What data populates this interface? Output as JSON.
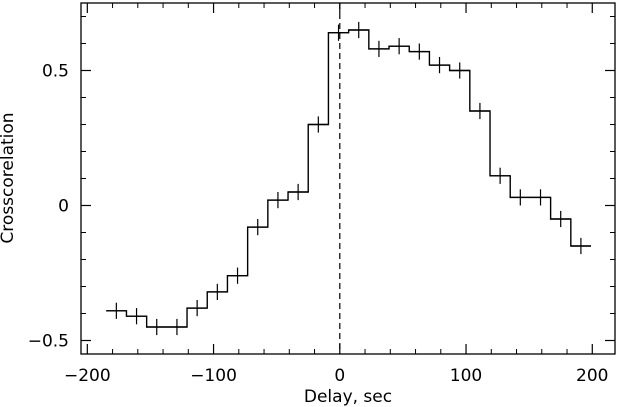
{
  "chart_data": {
    "type": "line",
    "style": "step-histogram-with-errorbars",
    "xlabel": "Delay, sec",
    "ylabel": "Crosscorelation",
    "xlim": [
      -205,
      218
    ],
    "ylim": [
      -0.55,
      0.75
    ],
    "x_ticks": [
      -200,
      -100,
      0,
      100,
      200
    ],
    "x_tick_labels": [
      "−200",
      "−100",
      "0",
      "100",
      "200"
    ],
    "y_ticks": [
      -0.5,
      0,
      0.5
    ],
    "y_tick_labels": [
      "−0.5",
      "0",
      "0.5"
    ],
    "x_minor_step": 20,
    "y_minor_step": 0.1,
    "reference_line": {
      "x": 0,
      "style": "dashed"
    },
    "bin_width": 16,
    "series": [
      {
        "x": [
          -177,
          -161,
          -145,
          -129,
          -113,
          -97,
          -81,
          -65,
          -49,
          -33,
          -17,
          -1,
          15,
          31,
          47,
          63,
          79,
          95,
          111,
          127,
          143,
          159,
          175,
          191
        ],
        "y": [
          -0.39,
          -0.41,
          -0.45,
          -0.45,
          -0.38,
          -0.32,
          -0.26,
          -0.08,
          0.02,
          0.05,
          0.3,
          0.64,
          0.65,
          0.58,
          0.59,
          0.57,
          0.52,
          0.5,
          0.35,
          0.11,
          0.03,
          0.03,
          -0.05,
          -0.15
        ],
        "yerr": [
          0.03,
          0.03,
          0.03,
          0.03,
          0.03,
          0.03,
          0.03,
          0.03,
          0.03,
          0.03,
          0.03,
          0.03,
          0.03,
          0.03,
          0.03,
          0.03,
          0.03,
          0.03,
          0.03,
          0.03,
          0.03,
          0.03,
          0.03,
          0.03
        ]
      }
    ]
  }
}
